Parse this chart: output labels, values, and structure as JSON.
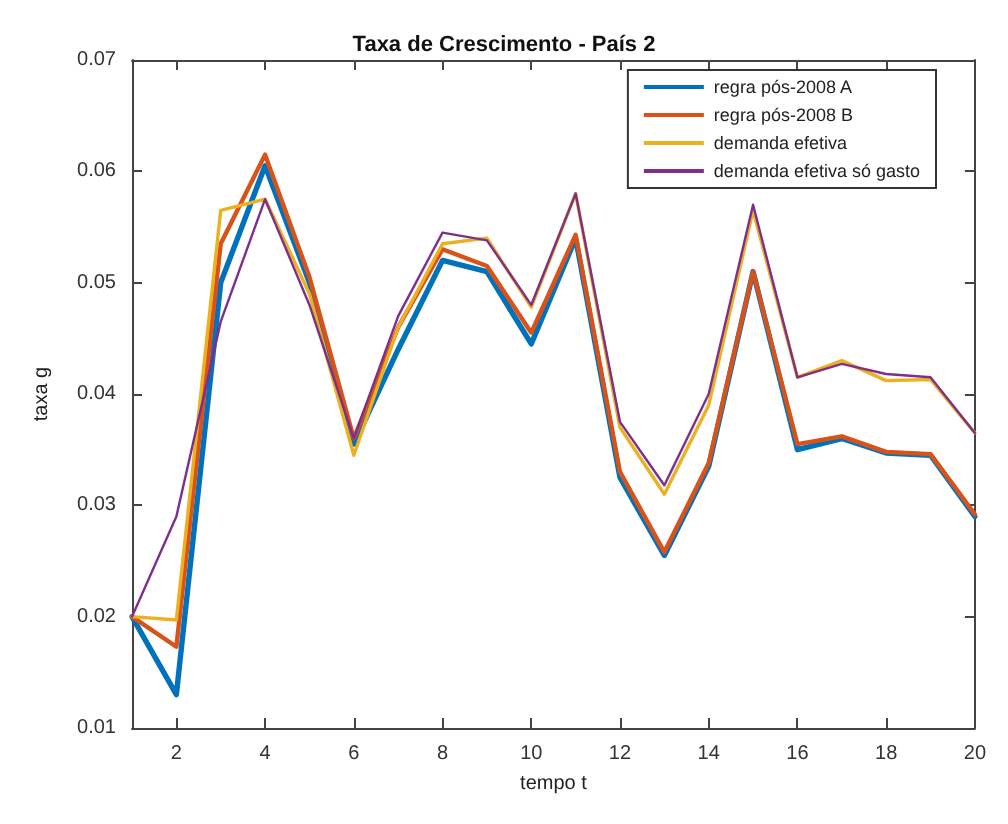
{
  "chart_data": {
    "type": "line",
    "title": "Taxa de Crescimento - País 2",
    "xlabel": "tempo t",
    "ylabel": "taxa g",
    "x": [
      1,
      2,
      3,
      4,
      5,
      6,
      7,
      8,
      9,
      10,
      11,
      12,
      13,
      14,
      15,
      16,
      17,
      18,
      19,
      20
    ],
    "series": [
      {
        "name": "regra pós-2008 A",
        "color": "#0072bd",
        "values": [
          0.02,
          0.013,
          0.05,
          0.0605,
          0.05,
          0.0355,
          0.044,
          0.052,
          0.051,
          0.0445,
          0.054,
          0.0325,
          0.0255,
          0.0335,
          0.051,
          0.035,
          0.036,
          0.0347,
          0.0345,
          0.029
        ]
      },
      {
        "name": "regra pós-2008 B",
        "color": "#d95319",
        "values": [
          0.02,
          0.0173,
          0.0535,
          0.0615,
          0.0505,
          0.036,
          0.046,
          0.053,
          0.0515,
          0.0455,
          0.0543,
          0.033,
          0.0258,
          0.0338,
          0.051,
          0.0355,
          0.0362,
          0.0348,
          0.0346,
          0.0292
        ]
      },
      {
        "name": "demanda efetiva",
        "color": "#edb120",
        "values": [
          0.02,
          0.0197,
          0.0565,
          0.0575,
          0.049,
          0.0345,
          0.046,
          0.0535,
          0.054,
          0.0478,
          0.058,
          0.037,
          0.031,
          0.039,
          0.0565,
          0.0415,
          0.043,
          0.0412,
          0.0413,
          0.0365
        ]
      },
      {
        "name": "demanda efetiva só gasto",
        "color": "#7e2f8e",
        "values": [
          0.02,
          0.029,
          0.0465,
          0.0575,
          0.048,
          0.036,
          0.047,
          0.0545,
          0.0538,
          0.048,
          0.058,
          0.0375,
          0.0318,
          0.04,
          0.057,
          0.0415,
          0.0427,
          0.0418,
          0.0415,
          0.0365
        ]
      }
    ],
    "xlim": [
      1,
      20
    ],
    "xticks": [
      2,
      4,
      6,
      8,
      10,
      12,
      14,
      16,
      18,
      20
    ],
    "ylim": [
      0.01,
      0.07
    ],
    "yticks": [
      0.01,
      0.02,
      0.03,
      0.04,
      0.05,
      0.06,
      0.07
    ],
    "grid": false,
    "legend": "top right",
    "marker": "none",
    "line_style": "solid"
  }
}
